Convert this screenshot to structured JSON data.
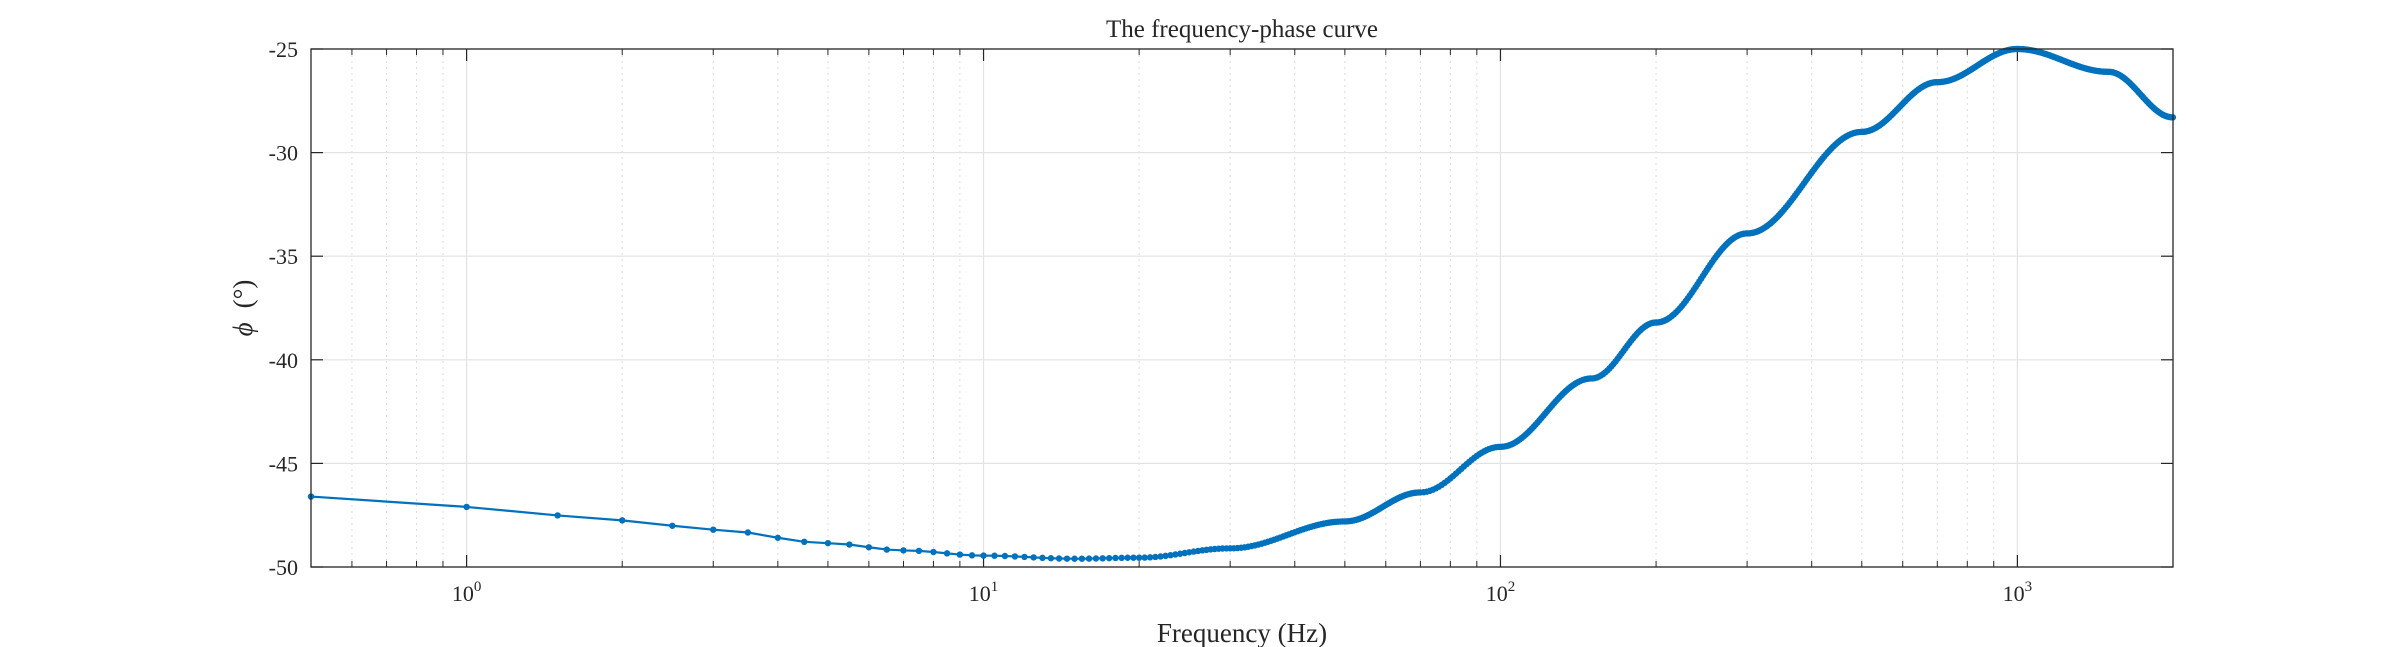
{
  "chart_data": {
    "type": "line",
    "title": "The frequency-phase curve",
    "xlabel": "Frequency (Hz)",
    "ylabel_symbol": "ϕ",
    "ylabel_unit": "(°)",
    "x_scale": "log",
    "xlim": [
      0.5,
      2000
    ],
    "ylim": [
      -50,
      -25
    ],
    "yticks": [
      -50,
      -45,
      -40,
      -35,
      -30,
      -25
    ],
    "xticks": [
      {
        "value": 1,
        "base": "10",
        "exp": "0"
      },
      {
        "value": 10,
        "base": "10",
        "exp": "1"
      },
      {
        "value": 100,
        "base": "10",
        "exp": "2"
      },
      {
        "value": 1000,
        "base": "10",
        "exp": "3"
      }
    ],
    "grid": true,
    "series_color": "#0072BD",
    "series": [
      {
        "x": [
          0.5,
          1,
          2,
          3,
          5,
          7,
          10,
          15,
          20,
          30,
          50,
          70,
          100,
          150,
          200,
          300,
          500,
          700,
          1000,
          1500,
          2000
        ],
        "y": [
          -46.6,
          -47.1,
          -47.75,
          -48.2,
          -48.85,
          -49.2,
          -49.45,
          -49.6,
          -49.55,
          -49.1,
          -47.8,
          -46.4,
          -44.2,
          -40.9,
          -38.2,
          -33.9,
          -29.0,
          -26.6,
          -25.0,
          -26.1,
          -28.3
        ]
      }
    ]
  }
}
